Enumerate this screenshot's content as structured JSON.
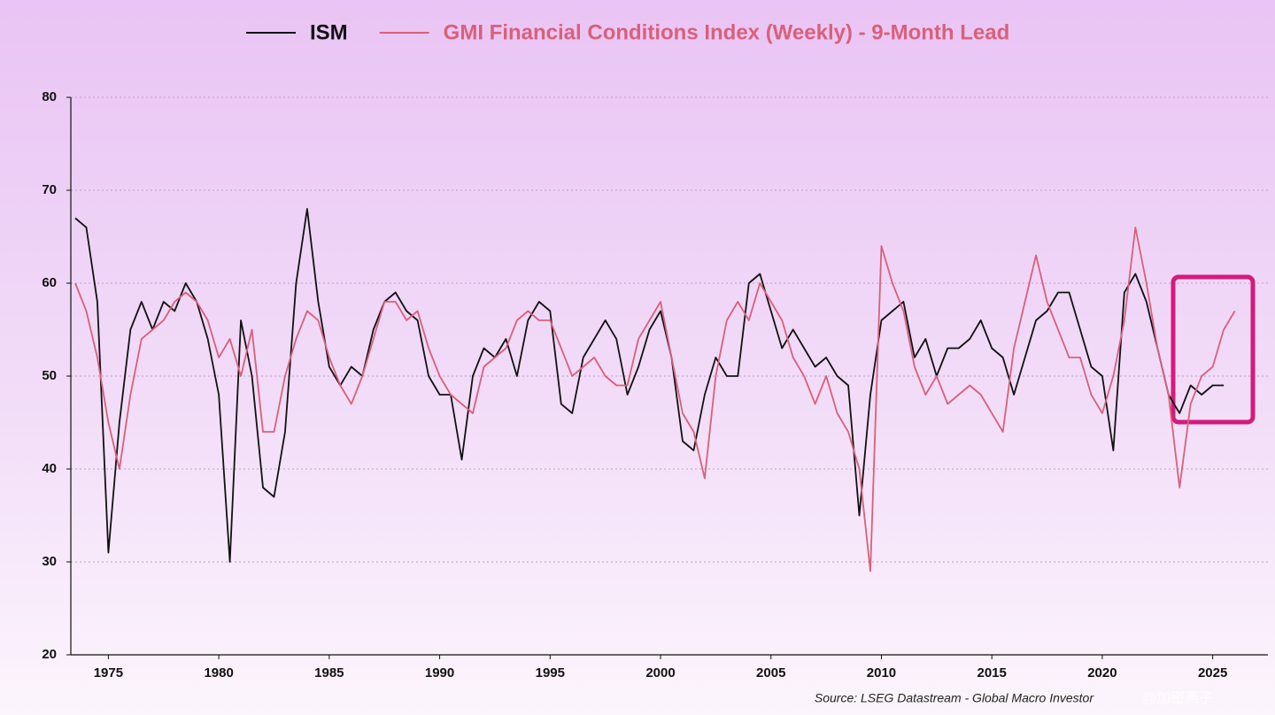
{
  "chart_data": {
    "type": "line",
    "source": "Source: LSEG Datastream - Global Macro Investor",
    "watermark": "@加密燕子",
    "x": [
      1973.5,
      1974,
      1974.5,
      1975,
      1975.5,
      1976,
      1976.5,
      1977,
      1977.5,
      1978,
      1978.5,
      1979,
      1979.5,
      1980,
      1980.5,
      1981,
      1981.5,
      1982,
      1982.5,
      1983,
      1983.5,
      1984,
      1984.5,
      1985,
      1985.5,
      1986,
      1986.5,
      1987,
      1987.5,
      1988,
      1988.5,
      1989,
      1989.5,
      1990,
      1990.5,
      1991,
      1991.5,
      1992,
      1992.5,
      1993,
      1993.5,
      1994,
      1994.5,
      1995,
      1995.5,
      1996,
      1996.5,
      1997,
      1997.5,
      1998,
      1998.5,
      1999,
      1999.5,
      2000,
      2000.5,
      2001,
      2001.5,
      2002,
      2002.5,
      2003,
      2003.5,
      2004,
      2004.5,
      2005,
      2005.5,
      2006,
      2006.5,
      2007,
      2007.5,
      2008,
      2008.5,
      2009,
      2009.5,
      2010,
      2010.5,
      2011,
      2011.5,
      2012,
      2012.5,
      2013,
      2013.5,
      2014,
      2014.5,
      2015,
      2015.5,
      2016,
      2016.5,
      2017,
      2017.5,
      2018,
      2018.5,
      2019,
      2019.5,
      2020,
      2020.5,
      2021,
      2021.5,
      2022,
      2022.5,
      2023,
      2023.5,
      2024,
      2024.5,
      2025,
      2025.5,
      2026
    ],
    "series": [
      {
        "name": "ISM",
        "color": "#111111",
        "values": [
          67,
          66,
          58,
          31,
          45,
          55,
          58,
          55,
          58,
          57,
          60,
          58,
          54,
          48,
          30,
          56,
          50,
          38,
          37,
          44,
          60,
          68,
          58,
          51,
          49,
          51,
          50,
          55,
          58,
          59,
          57,
          56,
          50,
          48,
          48,
          41,
          50,
          53,
          52,
          54,
          50,
          56,
          58,
          57,
          47,
          46,
          52,
          54,
          56,
          54,
          48,
          51,
          55,
          57,
          52,
          43,
          42,
          48,
          52,
          50,
          50,
          60,
          61,
          57,
          53,
          55,
          53,
          51,
          52,
          50,
          49,
          35,
          48,
          56,
          57,
          58,
          52,
          54,
          50,
          53,
          53,
          54,
          56,
          53,
          52,
          48,
          52,
          56,
          57,
          59,
          59,
          55,
          51,
          50,
          42,
          59,
          61,
          58,
          53,
          48,
          46,
          49,
          48,
          49,
          49,
          null
        ]
      },
      {
        "name": "GMI Financial Conditions Index (Weekly) - 9-Month Lead",
        "color": "#d9607a",
        "values": [
          60,
          57,
          52,
          45,
          40,
          48,
          54,
          55,
          56,
          58,
          59,
          58,
          56,
          52,
          54,
          50,
          55,
          44,
          44,
          50,
          54,
          57,
          56,
          52,
          49,
          47,
          50,
          54,
          58,
          58,
          56,
          57,
          53,
          50,
          48,
          47,
          46,
          51,
          52,
          53,
          56,
          57,
          56,
          56,
          53,
          50,
          51,
          52,
          50,
          49,
          49,
          54,
          56,
          58,
          52,
          46,
          44,
          39,
          50,
          56,
          58,
          56,
          60,
          58,
          56,
          52,
          50,
          47,
          50,
          46,
          44,
          40,
          29,
          64,
          60,
          57,
          51,
          48,
          50,
          47,
          48,
          49,
          48,
          46,
          44,
          53,
          58,
          63,
          58,
          55,
          52,
          52,
          48,
          46,
          50,
          56,
          66,
          60,
          53,
          48,
          38,
          47,
          50,
          51,
          55,
          57
        ]
      }
    ],
    "xlim": [
      1973.3,
      2027.5
    ],
    "ylim": [
      20,
      80
    ],
    "xticks": [
      1975,
      1980,
      1985,
      1990,
      1995,
      2000,
      2005,
      2010,
      2015,
      2020,
      2025
    ],
    "yticks": [
      20,
      30,
      40,
      50,
      60,
      70,
      80
    ],
    "grid": true
  }
}
